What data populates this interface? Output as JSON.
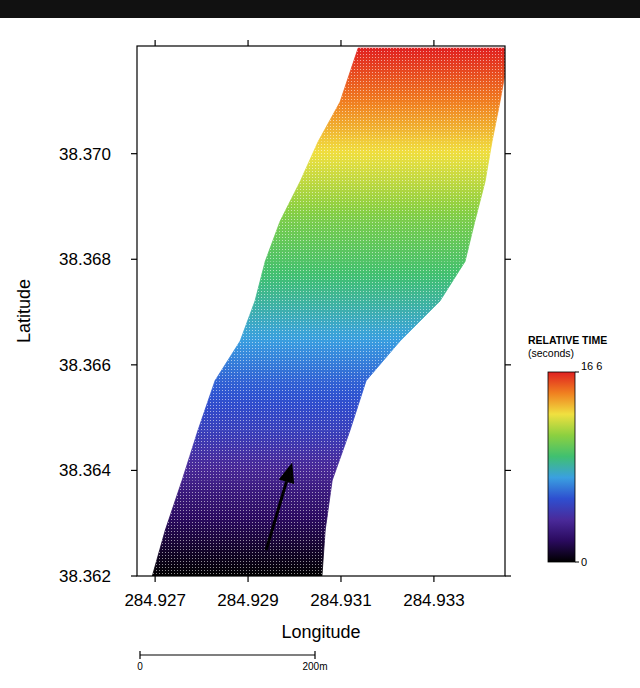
{
  "chart_data": {
    "type": "swath",
    "x_label": "Longitude",
    "y_label": "Latitude",
    "xlim": [
      284.92661,
      284.93453
    ],
    "ylim": [
      38.362,
      38.37204
    ],
    "xticks": [
      284.927,
      284.929,
      284.931,
      284.933
    ],
    "yticks": [
      38.362,
      38.364,
      38.366,
      38.368,
      {
        "value": 38.37,
        "label": "38.370"
      }
    ],
    "swath": {
      "lat": [
        38.362,
        38.36287,
        38.36381,
        38.36475,
        38.3657,
        38.36645,
        38.36721,
        38.36796,
        38.36872,
        38.36947,
        38.37023,
        38.37098,
        38.372
      ],
      "lon_left": [
        284.92694,
        284.92722,
        284.92758,
        284.92792,
        284.92829,
        284.92883,
        284.92915,
        284.92937,
        284.92969,
        284.93012,
        284.93051,
        284.93098,
        284.93137
      ],
      "lon_right": [
        284.93059,
        284.93066,
        284.93081,
        284.93119,
        284.93154,
        284.93227,
        284.93313,
        284.93367,
        284.93388,
        284.9341,
        284.93425,
        284.93442,
        284.93463
      ],
      "time": [
        0,
        1.5,
        3.2,
        4.8,
        6.0,
        7.3,
        8.5,
        9.6,
        10.6,
        12.0,
        13.3,
        14.8,
        16.6
      ]
    },
    "arrow": {
      "lon": [
        284.92939,
        284.92995
      ],
      "lat": [
        38.36249,
        38.36415
      ]
    },
    "colorbar": {
      "title": "RELATIVE TIME",
      "subtitle": "(seconds)",
      "range": [
        0,
        16.6
      ],
      "ticks": [
        {
          "value": 16.6,
          "label": "16 6"
        },
        0
      ],
      "colors": [
        "#000000",
        "#2a0a5e",
        "#4a2a9a",
        "#2e4fd0",
        "#3aa0e0",
        "#40c070",
        "#8cd040",
        "#f0e040",
        "#f08020",
        "#e02020"
      ]
    },
    "scale_bar": {
      "labels": [
        "0",
        "200m"
      ]
    }
  }
}
